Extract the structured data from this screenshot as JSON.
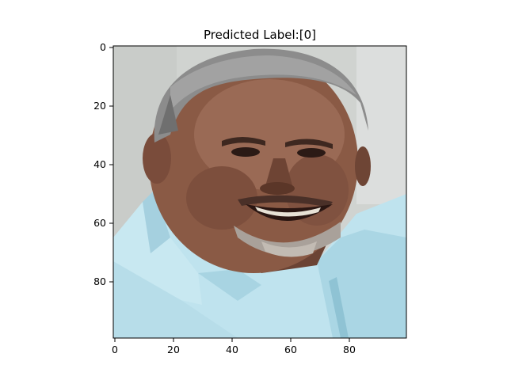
{
  "figure": {
    "title": "Predicted Label:[0]"
  },
  "axes": {
    "x_ticks": [
      "0",
      "20",
      "40",
      "60",
      "80"
    ],
    "y_ticks": [
      "0",
      "20",
      "40",
      "60",
      "80"
    ]
  },
  "image": {
    "subject": "portrait photo of a smiling older man with short gray hair and a light blue collared shirt, shown as a pixelated 100x100 image",
    "colors": {
      "background": "#cfd2cf",
      "skin": "#8a5a45",
      "skin_highlight": "#a87560",
      "hair": "#8c8c8c",
      "shirt": "#bfe3ee",
      "shirt_shadow": "#9fcbd9",
      "frame": "#000000"
    }
  }
}
